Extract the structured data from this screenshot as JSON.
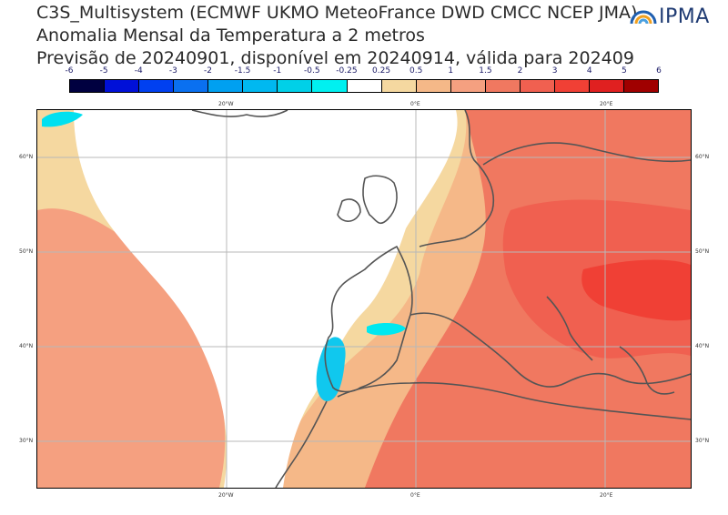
{
  "title": {
    "line1": "C3S_Multisystem (ECMWF UKMO MeteoFrance DWD CMCC NCEP JMA)",
    "line2": "Anomalia Mensal da Temperatura a 2 metros",
    "line3": "Previsão de 20240901, disponível em 20240914, válida para 202409"
  },
  "logo": {
    "text": "IPMA",
    "icon": "ipma-logo-icon"
  },
  "colorbar": {
    "ticks": [
      "-6",
      "-5",
      "-4",
      "-3",
      "-2",
      "-1.5",
      "-1",
      "-0.5",
      "-0.25",
      "0.25",
      "0.5",
      "1",
      "1.5",
      "2",
      "3",
      "4",
      "5",
      "6"
    ],
    "colors": [
      "#000040",
      "#0010d8",
      "#0040f0",
      "#0a70f0",
      "#00a0f0",
      "#00b8f0",
      "#00d0e8",
      "#00f0f0",
      "#ffffff",
      "#f5d8a0",
      "#f5b888",
      "#f5a080",
      "#f07860",
      "#f06050",
      "#f04035",
      "#e02020",
      "#a00000"
    ]
  },
  "map": {
    "lon_labels": [
      "20°W",
      "0°E",
      "20°E"
    ],
    "lat_labels": [
      "60°N",
      "50°N",
      "40°N",
      "30°N"
    ]
  }
}
